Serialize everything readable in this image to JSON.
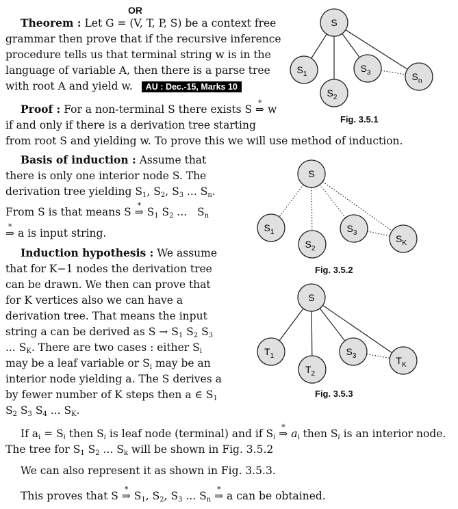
{
  "header": "OR",
  "theorem": {
    "label": "Theorem :",
    "l1": "Let G = (V, T, P, S) be a context free",
    "l2": "grammar then prove that if the recursive inference",
    "l3": "procedure tells us that terminal string w is in the",
    "l4": "language of variable A, then there is a parse tree",
    "l5": "with root A and yield w.",
    "badge": "AU : Dec.-15, Marks 10"
  },
  "proof": {
    "label": "Proof :",
    "l1a": "For a non-terminal S there exists S",
    "l1b": "w",
    "l2": "if and only if there is a derivation tree starting",
    "l3": "from root S and yielding w. To prove this we will use method of induction."
  },
  "basis": {
    "label": "Basis of induction :",
    "l1": "Assume that",
    "l2": "there is only one interior node S. The",
    "l3": "derivation tree yielding S",
    "l3s": [
      "1",
      "2",
      "3",
      "n"
    ],
    "l4a": "From S is that means S",
    "l5": "a is input string."
  },
  "hypothesis": {
    "label": "Induction hypothesis :",
    "l1": "We assume",
    "l2": "that for K−1 nodes the derivation tree",
    "l3": "can be drawn. We then can prove that",
    "l4": "for K vertices also we can have a",
    "l5": "derivation tree. That means the input",
    "l6": "string a can be derived as S → S",
    "l7": "... S",
    "l7b": ". There are two cases : either S",
    "l8": "may be a leaf variable or S",
    "l8b": "may be an",
    "l9": "interior node yielding a. The S derives a",
    "l10": "by fewer number of K steps then a ∈ S",
    "l11": "S"
  },
  "para1": {
    "l1a": "If a",
    "l1b": "= S",
    "l1c": "then S",
    "l1d": "is leaf node (terminal) and if S",
    "l1e": "a",
    "l1f": "then S",
    "l1g": "is an interior node.",
    "l2": "The tree for S",
    "l2b": "will be shown in Fig. 3.5.2"
  },
  "para2": "We can also represent it as shown in Fig. 3.5.3.",
  "para3": {
    "a": "This proves that S",
    "b": "a can be obtained."
  },
  "figures": [
    {
      "caption": "Fig. 3.5.1",
      "root": "S",
      "children": [
        "S1",
        "S2",
        "S3",
        "Sn"
      ]
    },
    {
      "caption": "Fig. 3.5.2",
      "root": "S",
      "children": [
        "S1",
        "S2",
        "S3",
        "SK"
      ]
    },
    {
      "caption": "Fig. 3.5.3",
      "root": "S",
      "children": [
        "T1",
        "T2",
        "S3",
        "TK"
      ]
    }
  ],
  "colors": {
    "node_fill": "#e0e0e0",
    "node_stroke": "#222222",
    "badge_bg": "#000000"
  }
}
